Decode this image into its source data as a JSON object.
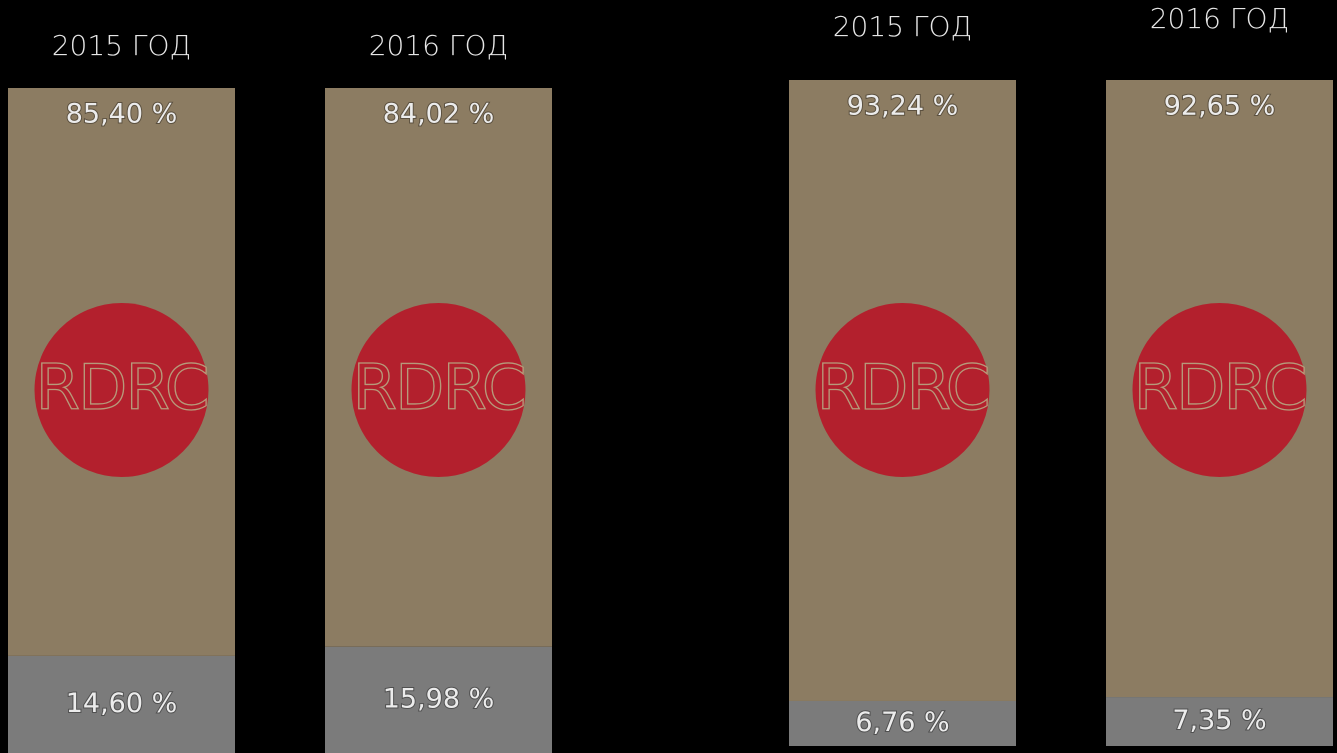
{
  "logo": "RDRC",
  "chart_data": [
    {
      "type": "stacked_bar",
      "categories": [
        "2015 ГОД",
        "2016 ГОД"
      ],
      "series": [
        {
          "color": "#8c7c62",
          "values": [
            85.4,
            84.02
          ],
          "value_labels": [
            "85,40 %",
            "84,02 %"
          ]
        },
        {
          "color": "#7b7b7b",
          "values": [
            14.6,
            15.98
          ],
          "value_labels": [
            "14,60 %",
            "15,98 %"
          ]
        }
      ]
    },
    {
      "type": "stacked_bar",
      "categories": [
        "2015 ГОД",
        "2016 ГОД"
      ],
      "series": [
        {
          "color": "#8c7c62",
          "values": [
            93.24,
            92.65
          ],
          "value_labels": [
            "93,24 %",
            "92,65 %"
          ]
        },
        {
          "color": "#7b7b7b",
          "values": [
            6.76,
            7.35
          ],
          "value_labels": [
            "6,76 %",
            "7,35 %"
          ]
        }
      ]
    }
  ]
}
